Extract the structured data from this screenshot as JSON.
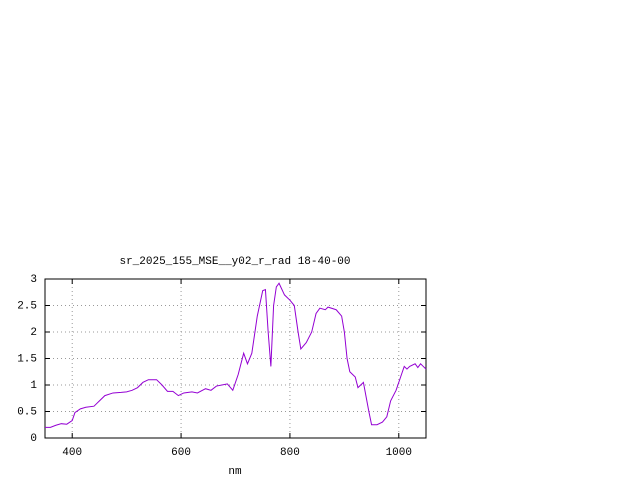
{
  "chart_data": {
    "type": "line",
    "title": "sr_2025_155_MSE__y02_r_rad 18-40-00",
    "x_label": "nm",
    "x": [
      350,
      360,
      370,
      380,
      390,
      400,
      405,
      415,
      425,
      440,
      450,
      460,
      475,
      490,
      500,
      510,
      520,
      530,
      540,
      555,
      565,
      575,
      585,
      595,
      605,
      620,
      630,
      645,
      655,
      665,
      675,
      685,
      695,
      705,
      715,
      722,
      730,
      740,
      750,
      755,
      760,
      765,
      770,
      775,
      780,
      790,
      800,
      808,
      815,
      820,
      830,
      840,
      848,
      855,
      865,
      870,
      885,
      895,
      900,
      905,
      910,
      920,
      925,
      935,
      945,
      950,
      960,
      970,
      978,
      985,
      995,
      1005,
      1010,
      1015,
      1020,
      1030,
      1035,
      1040,
      1045,
      1050
    ],
    "series": [
      {
        "color": "#9400d3",
        "values": [
          0.2,
          0.2,
          0.24,
          0.27,
          0.26,
          0.33,
          0.48,
          0.55,
          0.58,
          0.6,
          0.7,
          0.8,
          0.85,
          0.86,
          0.87,
          0.9,
          0.95,
          1.05,
          1.1,
          1.1,
          1.0,
          0.88,
          0.88,
          0.8,
          0.85,
          0.87,
          0.85,
          0.93,
          0.9,
          0.98,
          1.0,
          1.02,
          0.9,
          1.2,
          1.6,
          1.4,
          1.6,
          2.3,
          2.78,
          2.8,
          2.0,
          1.35,
          2.5,
          2.85,
          2.92,
          2.7,
          2.6,
          2.5,
          2.0,
          1.68,
          1.8,
          2.0,
          2.35,
          2.45,
          2.42,
          2.47,
          2.42,
          2.3,
          2.0,
          1.5,
          1.25,
          1.15,
          0.95,
          1.05,
          0.5,
          0.25,
          0.25,
          0.3,
          0.4,
          0.7,
          0.9,
          1.2,
          1.35,
          1.3,
          1.35,
          1.4,
          1.33,
          1.4,
          1.35,
          1.3
        ]
      }
    ],
    "xlim": [
      350,
      1050
    ],
    "xticks": [
      400,
      600,
      800,
      1000
    ],
    "ylim": [
      0,
      3
    ],
    "yticks": [
      0,
      0.5,
      1,
      1.5,
      2,
      2.5,
      3
    ],
    "grid": true
  }
}
